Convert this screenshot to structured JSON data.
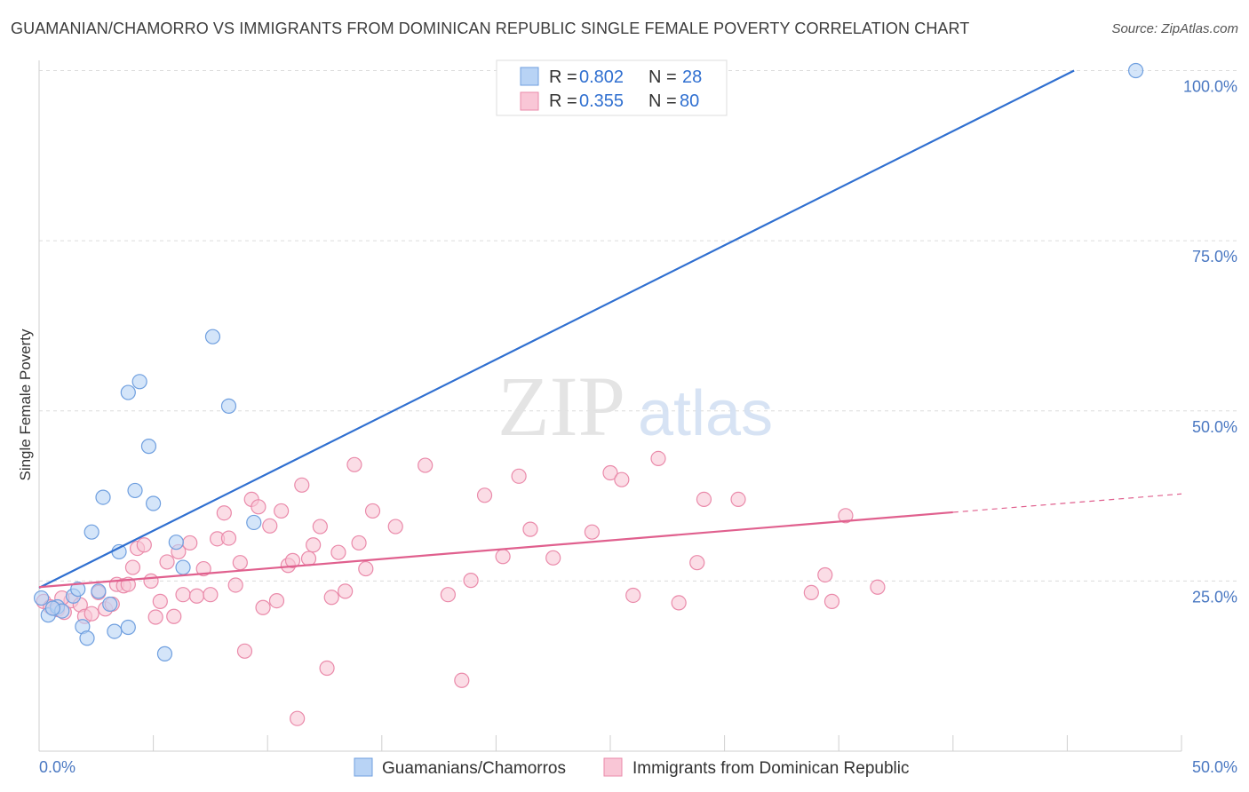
{
  "title": "GUAMANIAN/CHAMORRO VS IMMIGRANTS FROM DOMINICAN REPUBLIC SINGLE FEMALE POVERTY CORRELATION CHART",
  "source": "Source: ZipAtlas.com",
  "watermark": {
    "zip": "ZIP",
    "atlas": "atlas"
  },
  "legend": {
    "r_label": "R =",
    "n_label": "N =",
    "entries": [
      {
        "r": "0.802",
        "n": "28"
      },
      {
        "r": "0.355",
        "n": "80"
      }
    ]
  },
  "bottom_legend": [
    "Guamanians/Chamorros",
    "Immigrants from Dominican Republic"
  ],
  "colors": {
    "blue_fill": "#b8d3f5",
    "blue_stroke": "#6f9fdf",
    "blue_line": "#2f6fd0",
    "pink_fill": "#f9c6d6",
    "pink_stroke": "#ea8aaa",
    "pink_line": "#e0608e",
    "axis_text": "#4a78c2"
  },
  "chart_data": {
    "type": "scatter",
    "title": "GUAMANIAN/CHAMORRO VS IMMIGRANTS FROM DOMINICAN REPUBLIC SINGLE FEMALE POVERTY CORRELATION CHART",
    "xlabel": "",
    "ylabel": "Single Female Poverty",
    "xlim": [
      0,
      50
    ],
    "ylim": [
      0,
      102
    ],
    "x_tick_labels": [
      "0.0%",
      "50.0%"
    ],
    "y_ticks": [
      25,
      50,
      75,
      100
    ],
    "y_tick_labels": [
      "25.0%",
      "50.0%",
      "75.0%",
      "100.0%"
    ],
    "grid": true,
    "legend_position": "top-center",
    "series": [
      {
        "name": "Guamanians/Chamorros",
        "r": 0.802,
        "n": 28,
        "points": [
          [
            0.1,
            22.5
          ],
          [
            0.4,
            20.0
          ],
          [
            0.8,
            21.2
          ],
          [
            1.0,
            20.6
          ],
          [
            1.5,
            22.8
          ],
          [
            1.7,
            23.8
          ],
          [
            1.9,
            18.3
          ],
          [
            2.1,
            16.6
          ],
          [
            2.3,
            32.2
          ],
          [
            2.6,
            23.5
          ],
          [
            2.8,
            37.3
          ],
          [
            3.1,
            21.6
          ],
          [
            3.3,
            17.6
          ],
          [
            3.5,
            29.3
          ],
          [
            3.9,
            18.2
          ],
          [
            3.9,
            52.7
          ],
          [
            4.2,
            38.3
          ],
          [
            4.4,
            54.3
          ],
          [
            4.8,
            44.8
          ],
          [
            5.0,
            36.4
          ],
          [
            5.5,
            14.3
          ],
          [
            6.0,
            30.7
          ],
          [
            6.3,
            27.0
          ],
          [
            7.6,
            60.9
          ],
          [
            8.3,
            50.7
          ],
          [
            9.4,
            33.6
          ],
          [
            48.0,
            100.0
          ],
          [
            0.6,
            21.0
          ]
        ],
        "trend": {
          "x": [
            0.0,
            45.3
          ],
          "y": [
            24.0,
            100.0
          ]
        }
      },
      {
        "name": "Immigrants from Dominican Republic",
        "r": 0.355,
        "n": 80,
        "points": [
          [
            0.2,
            22.0
          ],
          [
            0.5,
            21.2
          ],
          [
            0.8,
            20.8
          ],
          [
            1.1,
            20.4
          ],
          [
            1.4,
            22.1
          ],
          [
            1.8,
            21.5
          ],
          [
            2.0,
            19.8
          ],
          [
            2.3,
            20.2
          ],
          [
            2.6,
            23.3
          ],
          [
            2.9,
            20.9
          ],
          [
            3.2,
            21.6
          ],
          [
            3.4,
            24.5
          ],
          [
            3.7,
            24.3
          ],
          [
            3.9,
            24.5
          ],
          [
            4.1,
            27.0
          ],
          [
            4.3,
            29.8
          ],
          [
            4.6,
            30.3
          ],
          [
            4.9,
            25.0
          ],
          [
            5.1,
            19.7
          ],
          [
            5.3,
            22.0
          ],
          [
            5.6,
            27.8
          ],
          [
            5.9,
            19.8
          ],
          [
            6.1,
            29.3
          ],
          [
            6.3,
            23.0
          ],
          [
            6.6,
            30.6
          ],
          [
            6.9,
            22.8
          ],
          [
            7.2,
            26.8
          ],
          [
            7.5,
            23.0
          ],
          [
            7.8,
            31.2
          ],
          [
            8.1,
            35.0
          ],
          [
            8.3,
            31.3
          ],
          [
            8.6,
            24.4
          ],
          [
            8.8,
            27.7
          ],
          [
            9.0,
            14.7
          ],
          [
            9.3,
            37.0
          ],
          [
            9.6,
            35.9
          ],
          [
            9.8,
            21.1
          ],
          [
            10.1,
            33.1
          ],
          [
            10.4,
            22.1
          ],
          [
            10.6,
            35.3
          ],
          [
            10.9,
            27.3
          ],
          [
            11.1,
            28.0
          ],
          [
            11.3,
            4.8
          ],
          [
            11.5,
            39.1
          ],
          [
            11.8,
            28.3
          ],
          [
            12.0,
            30.3
          ],
          [
            12.3,
            33.0
          ],
          [
            12.6,
            12.2
          ],
          [
            12.8,
            22.6
          ],
          [
            13.1,
            29.2
          ],
          [
            13.4,
            23.5
          ],
          [
            13.8,
            42.1
          ],
          [
            14.0,
            30.6
          ],
          [
            14.3,
            26.8
          ],
          [
            14.6,
            35.3
          ],
          [
            15.6,
            33.0
          ],
          [
            16.9,
            42.0
          ],
          [
            17.9,
            23.0
          ],
          [
            18.5,
            10.4
          ],
          [
            18.9,
            25.1
          ],
          [
            19.5,
            37.6
          ],
          [
            20.3,
            28.6
          ],
          [
            21.0,
            40.4
          ],
          [
            21.5,
            32.6
          ],
          [
            22.5,
            28.4
          ],
          [
            24.2,
            32.2
          ],
          [
            25.0,
            40.9
          ],
          [
            25.5,
            39.9
          ],
          [
            26.0,
            22.9
          ],
          [
            27.1,
            43.0
          ],
          [
            28.0,
            21.8
          ],
          [
            28.8,
            27.7
          ],
          [
            29.1,
            37.0
          ],
          [
            30.6,
            37.0
          ],
          [
            33.8,
            23.3
          ],
          [
            34.4,
            25.9
          ],
          [
            34.7,
            22.0
          ],
          [
            35.3,
            34.6
          ],
          [
            36.7,
            24.1
          ],
          [
            1.0,
            22.5
          ]
        ],
        "trend": {
          "x": [
            0.0,
            40.0
          ],
          "y": [
            24.1,
            35.1
          ]
        },
        "trend_extension": {
          "x": [
            40.0,
            50.0
          ],
          "y": [
            35.1,
            37.8
          ]
        }
      }
    ]
  }
}
